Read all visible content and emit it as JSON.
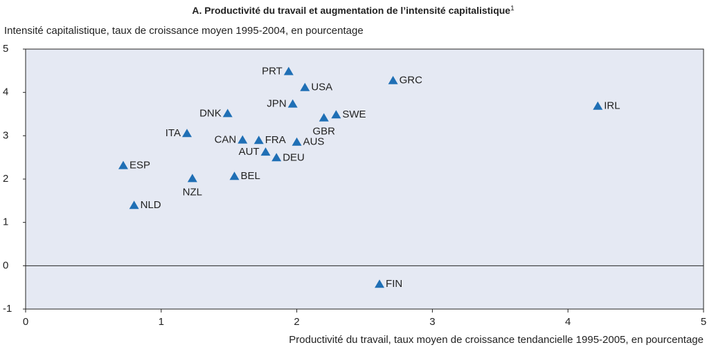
{
  "chart_data": {
    "type": "scatter",
    "title": "A. Productivité du travail et augmentation de l’intensité capitalistique",
    "title_note": "1",
    "y_label": "Intensité capitalistique, taux de croissance moyen 1995-2004, en pourcentage",
    "x_label": "Productivité du travail, taux moyen de croissance tendancielle 1995-2005, en pourcentage",
    "xlim": [
      0,
      5
    ],
    "xticks": [
      0,
      1,
      2,
      3,
      4,
      5
    ],
    "ylim": [
      -1,
      5
    ],
    "yticks": [
      -1,
      0,
      1,
      2,
      3,
      4,
      5
    ],
    "reference_line": 0,
    "color": "#1f6fb5",
    "labels": [
      "PRT",
      "USA",
      "GRC",
      "IRL",
      "JPN",
      "DNK",
      "GBR",
      "SWE",
      "ITA",
      "CAN",
      "FRA",
      "AUS",
      "AUT",
      "DEU",
      "ESP",
      "NZL",
      "BEL",
      "NLD",
      "FIN"
    ],
    "x": [
      1.94,
      2.06,
      2.71,
      4.22,
      1.97,
      1.49,
      2.2,
      2.29,
      1.19,
      1.6,
      1.72,
      2.0,
      1.77,
      1.85,
      0.72,
      1.23,
      1.54,
      0.8,
      2.61
    ],
    "values": [
      4.48,
      4.11,
      4.27,
      3.68,
      3.73,
      3.51,
      3.41,
      3.48,
      3.05,
      2.9,
      2.89,
      2.85,
      2.62,
      2.49,
      2.31,
      2.01,
      2.06,
      1.39,
      -0.43
    ]
  }
}
